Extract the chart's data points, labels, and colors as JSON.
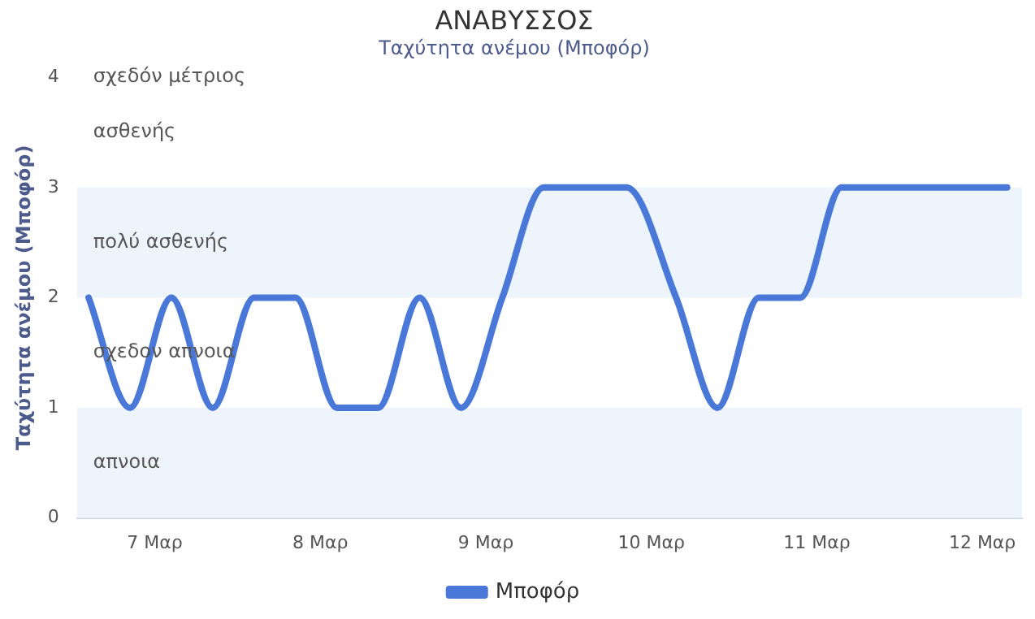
{
  "chart_data": {
    "type": "line",
    "title": "ΑΝΑΒΥΣΣΟΣ",
    "subtitle": "Ταχύτητα ανέμου (Μποφόρ)",
    "ylabel": "Ταχύτητα ανέμου (Μποφόρ)",
    "x": [
      6.6,
      6.85,
      7.1,
      7.35,
      7.6,
      7.85,
      8.1,
      8.35,
      8.6,
      8.85,
      9.1,
      9.35,
      9.6,
      9.85,
      10.15,
      10.4,
      10.65,
      10.9,
      11.15,
      11.4,
      11.65,
      11.9,
      12.15
    ],
    "series": [
      {
        "name": "Μποφόρ",
        "color": "#4a78d8",
        "values": [
          2,
          1,
          2,
          1,
          2,
          2,
          1,
          1,
          2,
          1,
          2,
          3,
          3,
          3,
          2,
          1,
          2,
          2,
          3,
          3,
          3,
          3,
          3
        ]
      }
    ],
    "xlim": [
      6.53,
      12.24
    ],
    "xticks": [
      {
        "value": 7,
        "label": "7 Μαρ"
      },
      {
        "value": 8,
        "label": "8 Μαρ"
      },
      {
        "value": 9,
        "label": "9 Μαρ"
      },
      {
        "value": 10,
        "label": "10 Μαρ"
      },
      {
        "value": 11,
        "label": "11 Μαρ"
      },
      {
        "value": 12,
        "label": "12 Μαρ"
      }
    ],
    "ylim": [
      0,
      4
    ],
    "yticks": [
      0,
      1,
      2,
      3,
      4
    ],
    "bands": [
      {
        "axis": "y",
        "from": 0,
        "to": 1,
        "label": "απνοια",
        "color": "#edf4fb"
      },
      {
        "axis": "y",
        "from": 2,
        "to": 3,
        "label": "πολύ ασθενής",
        "color": "#edf4fb"
      }
    ],
    "annotations": [
      "σχεδον απνοια",
      "ασθενής",
      "σχεδόν μέτριος"
    ],
    "grid": false,
    "legend": "bottom",
    "marker": "none",
    "line_style": "solid"
  }
}
